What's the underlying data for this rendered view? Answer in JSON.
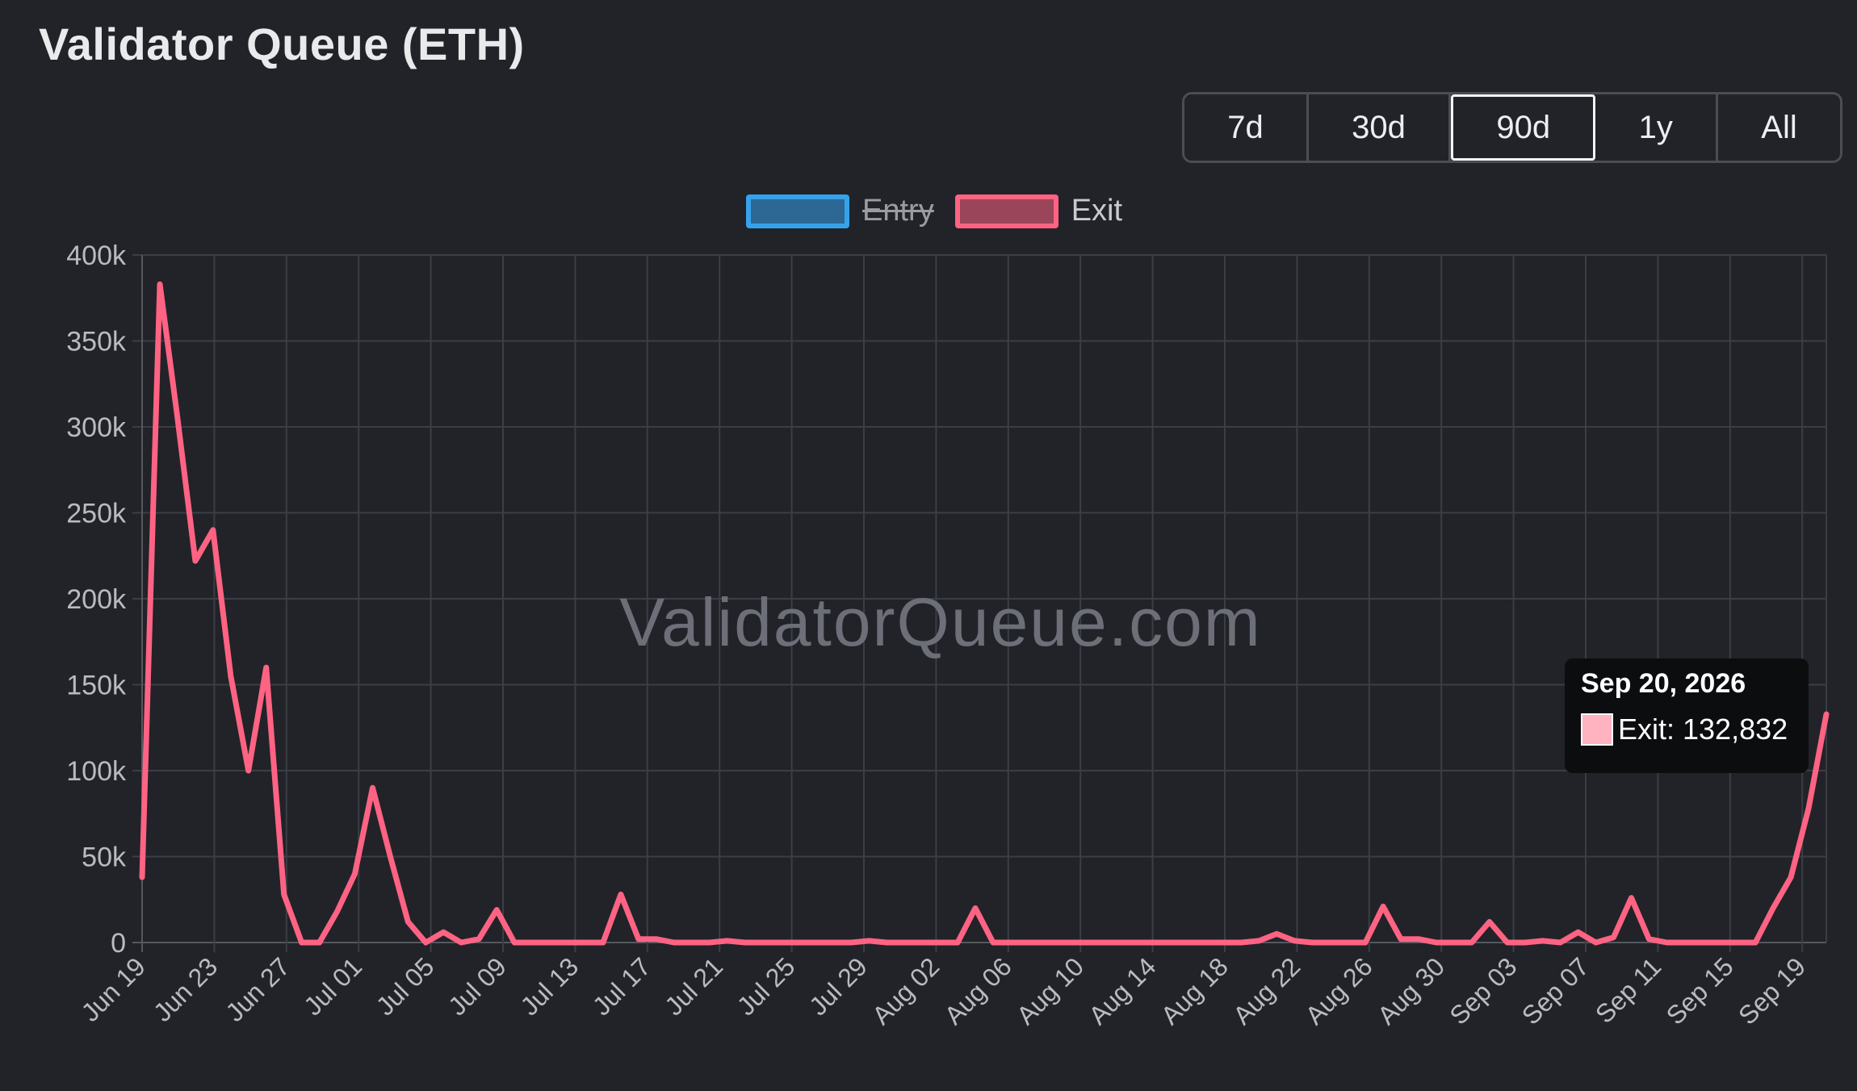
{
  "header": {
    "title": "Validator Queue (ETH)"
  },
  "ranges": {
    "items": [
      "7d",
      "30d",
      "90d",
      "1y",
      "All"
    ],
    "active": "90d"
  },
  "legend": {
    "entry": {
      "label": "Entry",
      "hidden": true,
      "color": "#36a2eb"
    },
    "exit": {
      "label": "Exit",
      "hidden": false,
      "color": "#ff6384"
    }
  },
  "watermark": "ValidatorQueue.com",
  "tooltip": {
    "date": "Sep 20, 2026",
    "label": "Exit:",
    "value": "132,832"
  },
  "chart_data": {
    "type": "line",
    "title": "Validator Queue (ETH)",
    "xlabel": "",
    "ylabel": "",
    "ylim": [
      0,
      400000
    ],
    "y_ticks": [
      "0",
      "50k",
      "100k",
      "150k",
      "200k",
      "250k",
      "300k",
      "350k",
      "400k"
    ],
    "x_tick_labels": [
      "Jun 19",
      "Jun 23",
      "Jun 27",
      "Jul 01",
      "Jul 05",
      "Jul 09",
      "Jul 13",
      "Jul 17",
      "Jul 21",
      "Jul 25",
      "Jul 29",
      "Aug 02",
      "Aug 06",
      "Aug 10",
      "Aug 14",
      "Aug 18",
      "Aug 22",
      "Aug 26",
      "Aug 30",
      "Sep 03",
      "Sep 07",
      "Sep 11",
      "Sep 15",
      "Sep 19"
    ],
    "grid": true,
    "legend_position": "top",
    "series": [
      {
        "name": "Exit",
        "color": "#ff6384",
        "values": [
          38000,
          383000,
          305000,
          222000,
          240000,
          155000,
          100000,
          160000,
          28000,
          0,
          0,
          18000,
          40000,
          90000,
          50000,
          12000,
          0,
          6000,
          0,
          2000,
          19000,
          0,
          0,
          0,
          0,
          0,
          0,
          28000,
          2000,
          2000,
          0,
          0,
          0,
          1000,
          0,
          0,
          0,
          0,
          0,
          0,
          0,
          1000,
          0,
          0,
          0,
          0,
          0,
          20000,
          0,
          0,
          0,
          0,
          0,
          0,
          0,
          0,
          0,
          0,
          0,
          0,
          0,
          0,
          0,
          1000,
          5000,
          1000,
          0,
          0,
          0,
          0,
          21000,
          2000,
          2000,
          0,
          0,
          0,
          12000,
          0,
          0,
          1000,
          0,
          6000,
          0,
          3000,
          26000,
          2000,
          0,
          0,
          0,
          0,
          0,
          0,
          20000,
          38000,
          78000,
          132832
        ]
      },
      {
        "name": "Entry",
        "color": "#36a2eb",
        "hidden": true,
        "values": []
      }
    ]
  }
}
